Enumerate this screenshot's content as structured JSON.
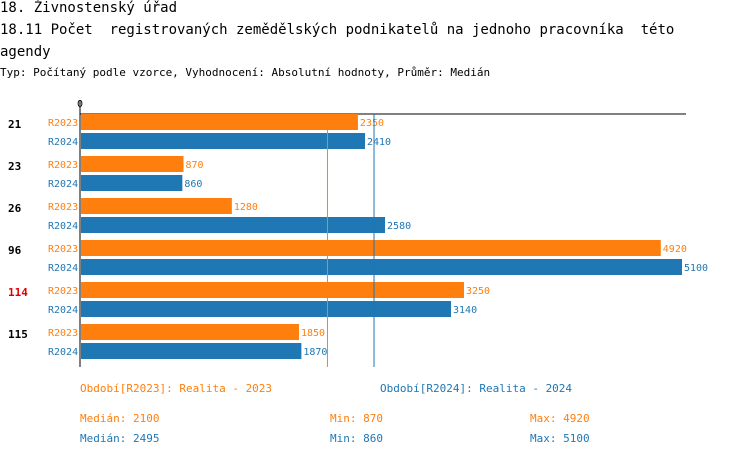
{
  "header": {
    "title_line1": "18. Živnostenský úřad",
    "title_line2": "18.11 Počet  registrovaných zemědělských podnikatelů na jednoho pracovníka  této",
    "title_line3": "agendy",
    "subtitle": "Typ: Počítaný podle vzorce, Vyhodnocení: Absolutní hodnoty, Průměr: Medián"
  },
  "colors": {
    "r2023": "#ff7f0e",
    "r2024": "#1f77b4",
    "highlight": "#e00000"
  },
  "chart_data": {
    "type": "bar",
    "orientation": "horizontal",
    "axis_zero_label": "0",
    "xlim": [
      0,
      5100
    ],
    "categories": [
      "21",
      "23",
      "26",
      "96",
      "114",
      "115"
    ],
    "highlighted_category": "114",
    "series": [
      {
        "name": "R2023",
        "values": [
          2350,
          870,
          1280,
          4920,
          3250,
          1850
        ]
      },
      {
        "name": "R2024",
        "values": [
          2410,
          860,
          2580,
          5100,
          3140,
          1870
        ]
      }
    ],
    "median_lines": {
      "R2023": 2100,
      "R2024": 2495
    }
  },
  "legend": {
    "r2023_label": "Období[R2023]: Realita - 2023",
    "r2024_label": "Období[R2024]: Realita - 2024",
    "r2023_median": "Medián: 2100",
    "r2023_min": "Min: 870",
    "r2023_max": "Max: 4920",
    "r2024_median": "Medián: 2495",
    "r2024_min": "Min: 860",
    "r2024_max": "Max: 5100"
  }
}
